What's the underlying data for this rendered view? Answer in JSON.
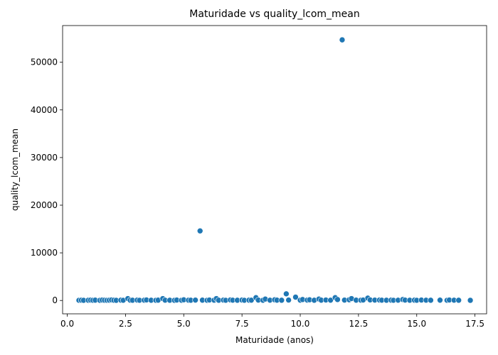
{
  "chart_data": {
    "type": "scatter",
    "title": "Maturidade vs quality_lcom_mean",
    "x_label": "Maturidade (anos)",
    "y_label": "quality_lcom_mean",
    "color": "#1f77b4",
    "x": [
      0.5,
      0.6,
      0.7,
      0.9,
      1.0,
      1.1,
      1.2,
      1.4,
      1.5,
      1.6,
      1.7,
      1.8,
      1.9,
      2.0,
      2.1,
      2.3,
      2.4,
      2.6,
      2.7,
      2.8,
      3.0,
      3.1,
      3.3,
      3.4,
      3.6,
      3.8,
      3.9,
      4.1,
      4.2,
      4.4,
      4.6,
      4.7,
      4.9,
      5.0,
      5.2,
      5.3,
      5.5,
      5.7,
      5.8,
      6.0,
      6.1,
      6.3,
      6.4,
      6.5,
      6.7,
      6.8,
      7.0,
      7.1,
      7.3,
      7.5,
      7.6,
      7.8,
      7.9,
      8.1,
      8.2,
      8.4,
      8.5,
      8.7,
      8.9,
      9.0,
      9.2,
      9.4,
      9.5,
      9.8,
      10.0,
      10.1,
      10.3,
      10.4,
      10.6,
      10.8,
      10.9,
      11.1,
      11.3,
      11.5,
      11.6,
      11.8,
      11.9,
      12.1,
      12.2,
      12.4,
      12.6,
      12.7,
      12.9,
      13.0,
      13.2,
      13.4,
      13.5,
      13.7,
      13.9,
      14.0,
      14.2,
      14.4,
      14.5,
      14.7,
      14.9,
      15.0,
      15.2,
      15.4,
      15.6,
      16.0,
      16.3,
      16.4,
      16.6,
      16.8,
      17.3
    ],
    "values": [
      40,
      60,
      30,
      50,
      80,
      40,
      70,
      30,
      90,
      50,
      40,
      60,
      120,
      50,
      30,
      70,
      40,
      400,
      60,
      50,
      80,
      40,
      60,
      110,
      50,
      40,
      70,
      400,
      60,
      50,
      30,
      90,
      40,
      150,
      60,
      50,
      80,
      14600,
      70,
      40,
      100,
      60,
      400,
      50,
      80,
      40,
      120,
      60,
      50,
      90,
      40,
      70,
      60,
      600,
      80,
      50,
      300,
      60,
      150,
      70,
      50,
      1400,
      90,
      700,
      60,
      200,
      80,
      150,
      50,
      300,
      70,
      100,
      60,
      600,
      200,
      54700,
      80,
      150,
      400,
      70,
      60,
      100,
      500,
      120,
      80,
      90,
      60,
      50,
      70,
      40,
      60,
      200,
      80,
      50,
      70,
      40,
      90,
      60,
      50,
      70,
      40,
      100,
      60,
      50,
      30
    ],
    "xlim": [
      -0.2,
      18.0
    ],
    "ylim": [
      -2800,
      57700
    ],
    "xticks": [
      {
        "value": 0,
        "label": "0.0"
      },
      2.5,
      {
        "value": 5,
        "label": "5.0"
      },
      7.5,
      {
        "value": 10,
        "label": "10.0"
      },
      12.5,
      {
        "value": 15,
        "label": "15.0"
      },
      17.5
    ],
    "yticks": [
      0,
      10000,
      20000,
      30000,
      40000,
      50000
    ]
  }
}
